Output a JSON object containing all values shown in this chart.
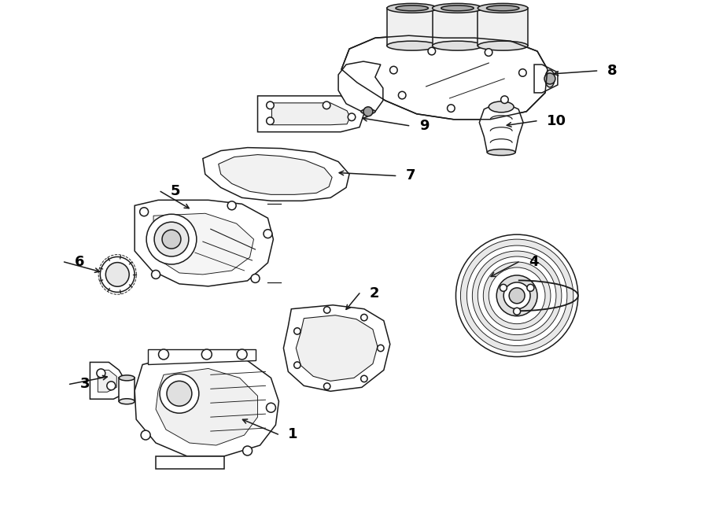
{
  "bg_color": "#ffffff",
  "line_color": "#1a1a1a",
  "label_color": "#000000",
  "label_fontsize": 13,
  "lw": 1.1,
  "labels": {
    "1": [
      3.58,
      1.08,
      3.05,
      1.28
    ],
    "2": [
      4.62,
      2.88,
      4.38,
      2.65
    ],
    "3": [
      0.92,
      1.72,
      1.38,
      1.82
    ],
    "4": [
      6.65,
      3.28,
      6.22,
      3.08
    ],
    "5": [
      2.08,
      4.18,
      2.42,
      3.95
    ],
    "6": [
      0.85,
      3.28,
      1.28,
      3.15
    ],
    "7": [
      5.08,
      4.38,
      4.28,
      4.42
    ],
    "8": [
      7.65,
      5.72,
      7.02,
      5.68
    ],
    "9": [
      5.25,
      5.02,
      4.58,
      5.12
    ],
    "10": [
      6.88,
      5.08,
      6.42,
      5.02
    ]
  }
}
